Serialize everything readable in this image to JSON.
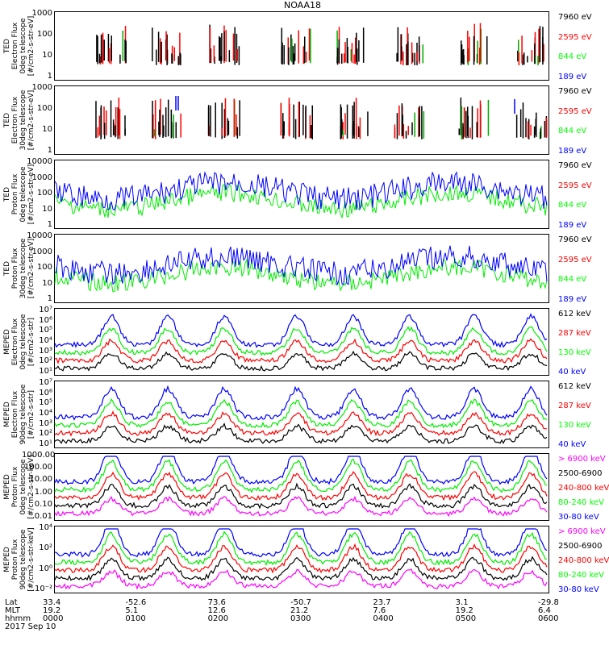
{
  "title": "NOAA18",
  "date": "2017 Sep 10",
  "footer": {
    "row_labels": [
      "Lat",
      "MLT",
      "hhmm"
    ],
    "lat": [
      "33.4",
      "-52.6",
      "73.6",
      "-50.7",
      "23.7",
      "3.1",
      "-29.8"
    ],
    "mlt": [
      "19.2",
      "5.1",
      "12.6",
      "21.2",
      "7.6",
      "19.2",
      "6.4"
    ],
    "hhmm": [
      "0000",
      "0100",
      "0200",
      "0300",
      "0400",
      "0500",
      "0600"
    ]
  },
  "colors": {
    "black": "#000000",
    "red": "#ff0000",
    "green": "#00ff00",
    "blue": "#0000ff",
    "magenta": "#ff00ff"
  },
  "chart_data": [
    {
      "type": "line",
      "scale": "log",
      "ylabel": "TED\nElectron Flux\n0deg telescope\n[#/cm2-s-str-eV]",
      "yticks": [
        "1",
        "10",
        "100",
        "1000"
      ],
      "ylim": [
        1,
        1000
      ],
      "legend": [
        {
          "label": "7960 eV",
          "color": "#000000"
        },
        {
          "label": "2595 eV",
          "color": "#ff0000"
        },
        {
          "label": "844 eV",
          "color": "#00ff00"
        },
        {
          "label": "189 eV",
          "color": "#0000ff"
        }
      ]
    },
    {
      "type": "line",
      "scale": "log",
      "ylabel": "TED\nElectron Flux\n30deg telescope\n[#/cm2-s-str-eV]",
      "yticks": [
        "1",
        "10",
        "100",
        "1000"
      ],
      "ylim": [
        1,
        1000
      ],
      "legend": [
        {
          "label": "7960 eV",
          "color": "#000000"
        },
        {
          "label": "2595 eV",
          "color": "#ff0000"
        },
        {
          "label": "844 eV",
          "color": "#00ff00"
        },
        {
          "label": "189 eV",
          "color": "#0000ff"
        }
      ]
    },
    {
      "type": "line",
      "scale": "log",
      "ylabel": "TED\nProton Flux\n0deg telescope\n[#/cm2-s-str-eV]",
      "yticks": [
        "1",
        "10",
        "100",
        "1000",
        "10000"
      ],
      "ylim": [
        1,
        10000
      ],
      "legend": [
        {
          "label": "7960 eV",
          "color": "#000000"
        },
        {
          "label": "2595 eV",
          "color": "#ff0000"
        },
        {
          "label": "844 eV",
          "color": "#00ff00"
        },
        {
          "label": "189 eV",
          "color": "#0000ff"
        }
      ]
    },
    {
      "type": "line",
      "scale": "log",
      "ylabel": "TED\nProton Flux\n30deg telescope\n[#/cm2-s-str-eV]",
      "yticks": [
        "1",
        "10",
        "100",
        "1000",
        "10000"
      ],
      "ylim": [
        1,
        10000
      ],
      "legend": [
        {
          "label": "7960 eV",
          "color": "#000000"
        },
        {
          "label": "2595 eV",
          "color": "#ff0000"
        },
        {
          "label": "844 eV",
          "color": "#00ff00"
        },
        {
          "label": "189 eV",
          "color": "#0000ff"
        }
      ]
    },
    {
      "type": "line",
      "scale": "log",
      "ylabel": "MEPED\nElectron Flux\n0deg telescope\n[#/cm2-s-str]",
      "yticks": [
        "10¹",
        "10²",
        "10³",
        "10⁴",
        "10⁵",
        "10⁶",
        "10⁷"
      ],
      "ylim": [
        10,
        10000000
      ],
      "legend": [
        {
          "label": "612 keV",
          "color": "#000000"
        },
        {
          "label": "287 keV",
          "color": "#ff0000"
        },
        {
          "label": "130 keV",
          "color": "#00ff00"
        },
        {
          "label": "40 keV",
          "color": "#0000ff"
        }
      ]
    },
    {
      "type": "line",
      "scale": "log",
      "ylabel": "MEPED\nElectron Flux\n90deg telescope\n[#/cm2-s-str]",
      "yticks": [
        "10¹",
        "10²",
        "10³",
        "10⁴",
        "10⁵",
        "10⁶",
        "10⁷"
      ],
      "ylim": [
        10,
        10000000
      ],
      "legend": [
        {
          "label": "612 keV",
          "color": "#000000"
        },
        {
          "label": "287 keV",
          "color": "#ff0000"
        },
        {
          "label": "130 keV",
          "color": "#00ff00"
        },
        {
          "label": "40 keV",
          "color": "#0000ff"
        }
      ]
    },
    {
      "type": "line",
      "scale": "log",
      "ylabel": "MEPED\nProton Flux\n0deg telescope\n[#/cm2-s-str-keV]",
      "yticks": [
        "0.01",
        "0.10",
        "1.00",
        "10.00",
        "100.00",
        "1000.00"
      ],
      "ylim": [
        0.01,
        1000
      ],
      "legend": [
        {
          "label": "> 6900 keV",
          "color": "#ff00ff"
        },
        {
          "label": "2500-6900",
          "color": "#000000"
        },
        {
          "label": "240-800 keV",
          "color": "#ff0000"
        },
        {
          "label": "80-240 keV",
          "color": "#00ff00"
        },
        {
          "label": "30-80 keV",
          "color": "#0000ff"
        }
      ]
    },
    {
      "type": "line",
      "scale": "log",
      "ylabel": "MEPED\nProton Flux\n90deg telescope\n[#/cm2-s-str-keV]",
      "yticks": [
        "10⁻²",
        "10⁰",
        "10²",
        "10⁴"
      ],
      "ylim": [
        0.01,
        10000
      ],
      "legend": [
        {
          "label": "> 6900 keV",
          "color": "#ff00ff"
        },
        {
          "label": "2500-6900",
          "color": "#000000"
        },
        {
          "label": "240-800 keV",
          "color": "#ff0000"
        },
        {
          "label": "80-240 keV",
          "color": "#00ff00"
        },
        {
          "label": "30-80 keV",
          "color": "#0000ff"
        }
      ]
    }
  ]
}
